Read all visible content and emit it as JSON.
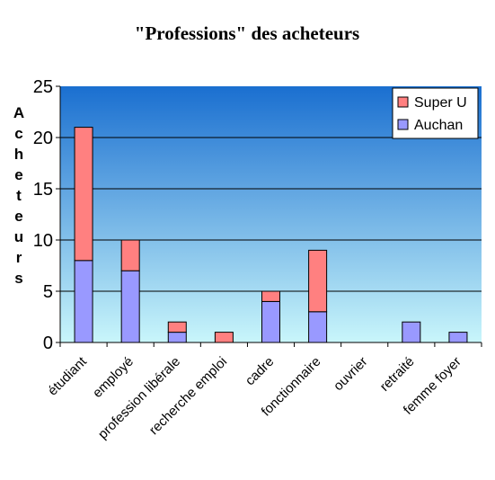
{
  "chart_data": {
    "type": "bar",
    "stacked": true,
    "title": "\"Professions\" des acheteurs",
    "ylabel": "Acheteurs",
    "xlabel": "",
    "categories": [
      "étudiant",
      "employé",
      "profession libérale",
      "recherche emploi",
      "cadre",
      "fonctionnaire",
      "ouvrier",
      "retraité",
      "femme foyer"
    ],
    "series": [
      {
        "name": "Auchan",
        "color": "#9999ff",
        "values": [
          8,
          7,
          1,
          0,
          4,
          3,
          0,
          2,
          1
        ]
      },
      {
        "name": "Super U",
        "color": "#ff8080",
        "values": [
          13,
          3,
          1,
          1,
          1,
          6,
          0,
          0,
          0
        ]
      }
    ],
    "ylim": [
      0,
      25
    ],
    "yticks": [
      0,
      5,
      10,
      15,
      20,
      25
    ],
    "grid": true,
    "legend": "top-right",
    "background_gradient": [
      "#1a6fd0",
      "#c9f6fb"
    ]
  }
}
